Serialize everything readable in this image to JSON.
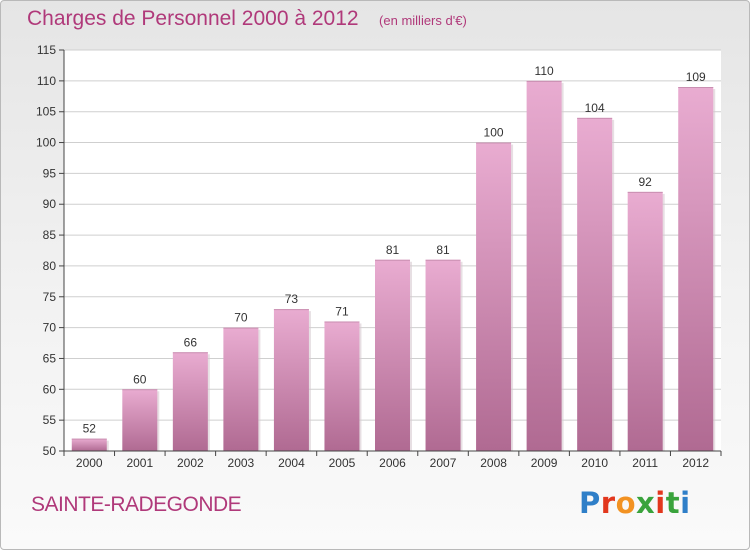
{
  "title": "Charges de Personnel 2000 à 2012",
  "subtitle": "(en milliers d'€)",
  "commune": "SAINTE-RADEGONDE",
  "logo": {
    "text": "Proxiti",
    "colors": {
      "P": "#2f7fc8",
      "r": "#e2371d",
      "o": "#f29222",
      "x": "#3aa33c",
      "i1": "#e2371d",
      "t": "#3aa33c",
      "i2": "#2f7fc8"
    }
  },
  "colors": {
    "bar_top": "#e9acd1",
    "bar_bottom": "#b06a92",
    "title": "#b0397a",
    "grid": "#cfcfcf"
  },
  "chart_data": {
    "type": "bar",
    "title": "Charges de Personnel 2000 à 2012",
    "subtitle": "(en milliers d'€)",
    "xlabel": "",
    "ylabel": "",
    "categories": [
      "2000",
      "2001",
      "2002",
      "2003",
      "2004",
      "2005",
      "2006",
      "2007",
      "2008",
      "2009",
      "2010",
      "2011",
      "2012"
    ],
    "values": [
      52,
      60,
      66,
      70,
      73,
      71,
      81,
      81,
      100,
      110,
      104,
      92,
      109
    ],
    "ylim": [
      50,
      115
    ],
    "yticks": [
      50,
      55,
      60,
      65,
      70,
      75,
      80,
      85,
      90,
      95,
      100,
      105,
      110,
      115
    ],
    "grid": true,
    "legend": "none"
  }
}
